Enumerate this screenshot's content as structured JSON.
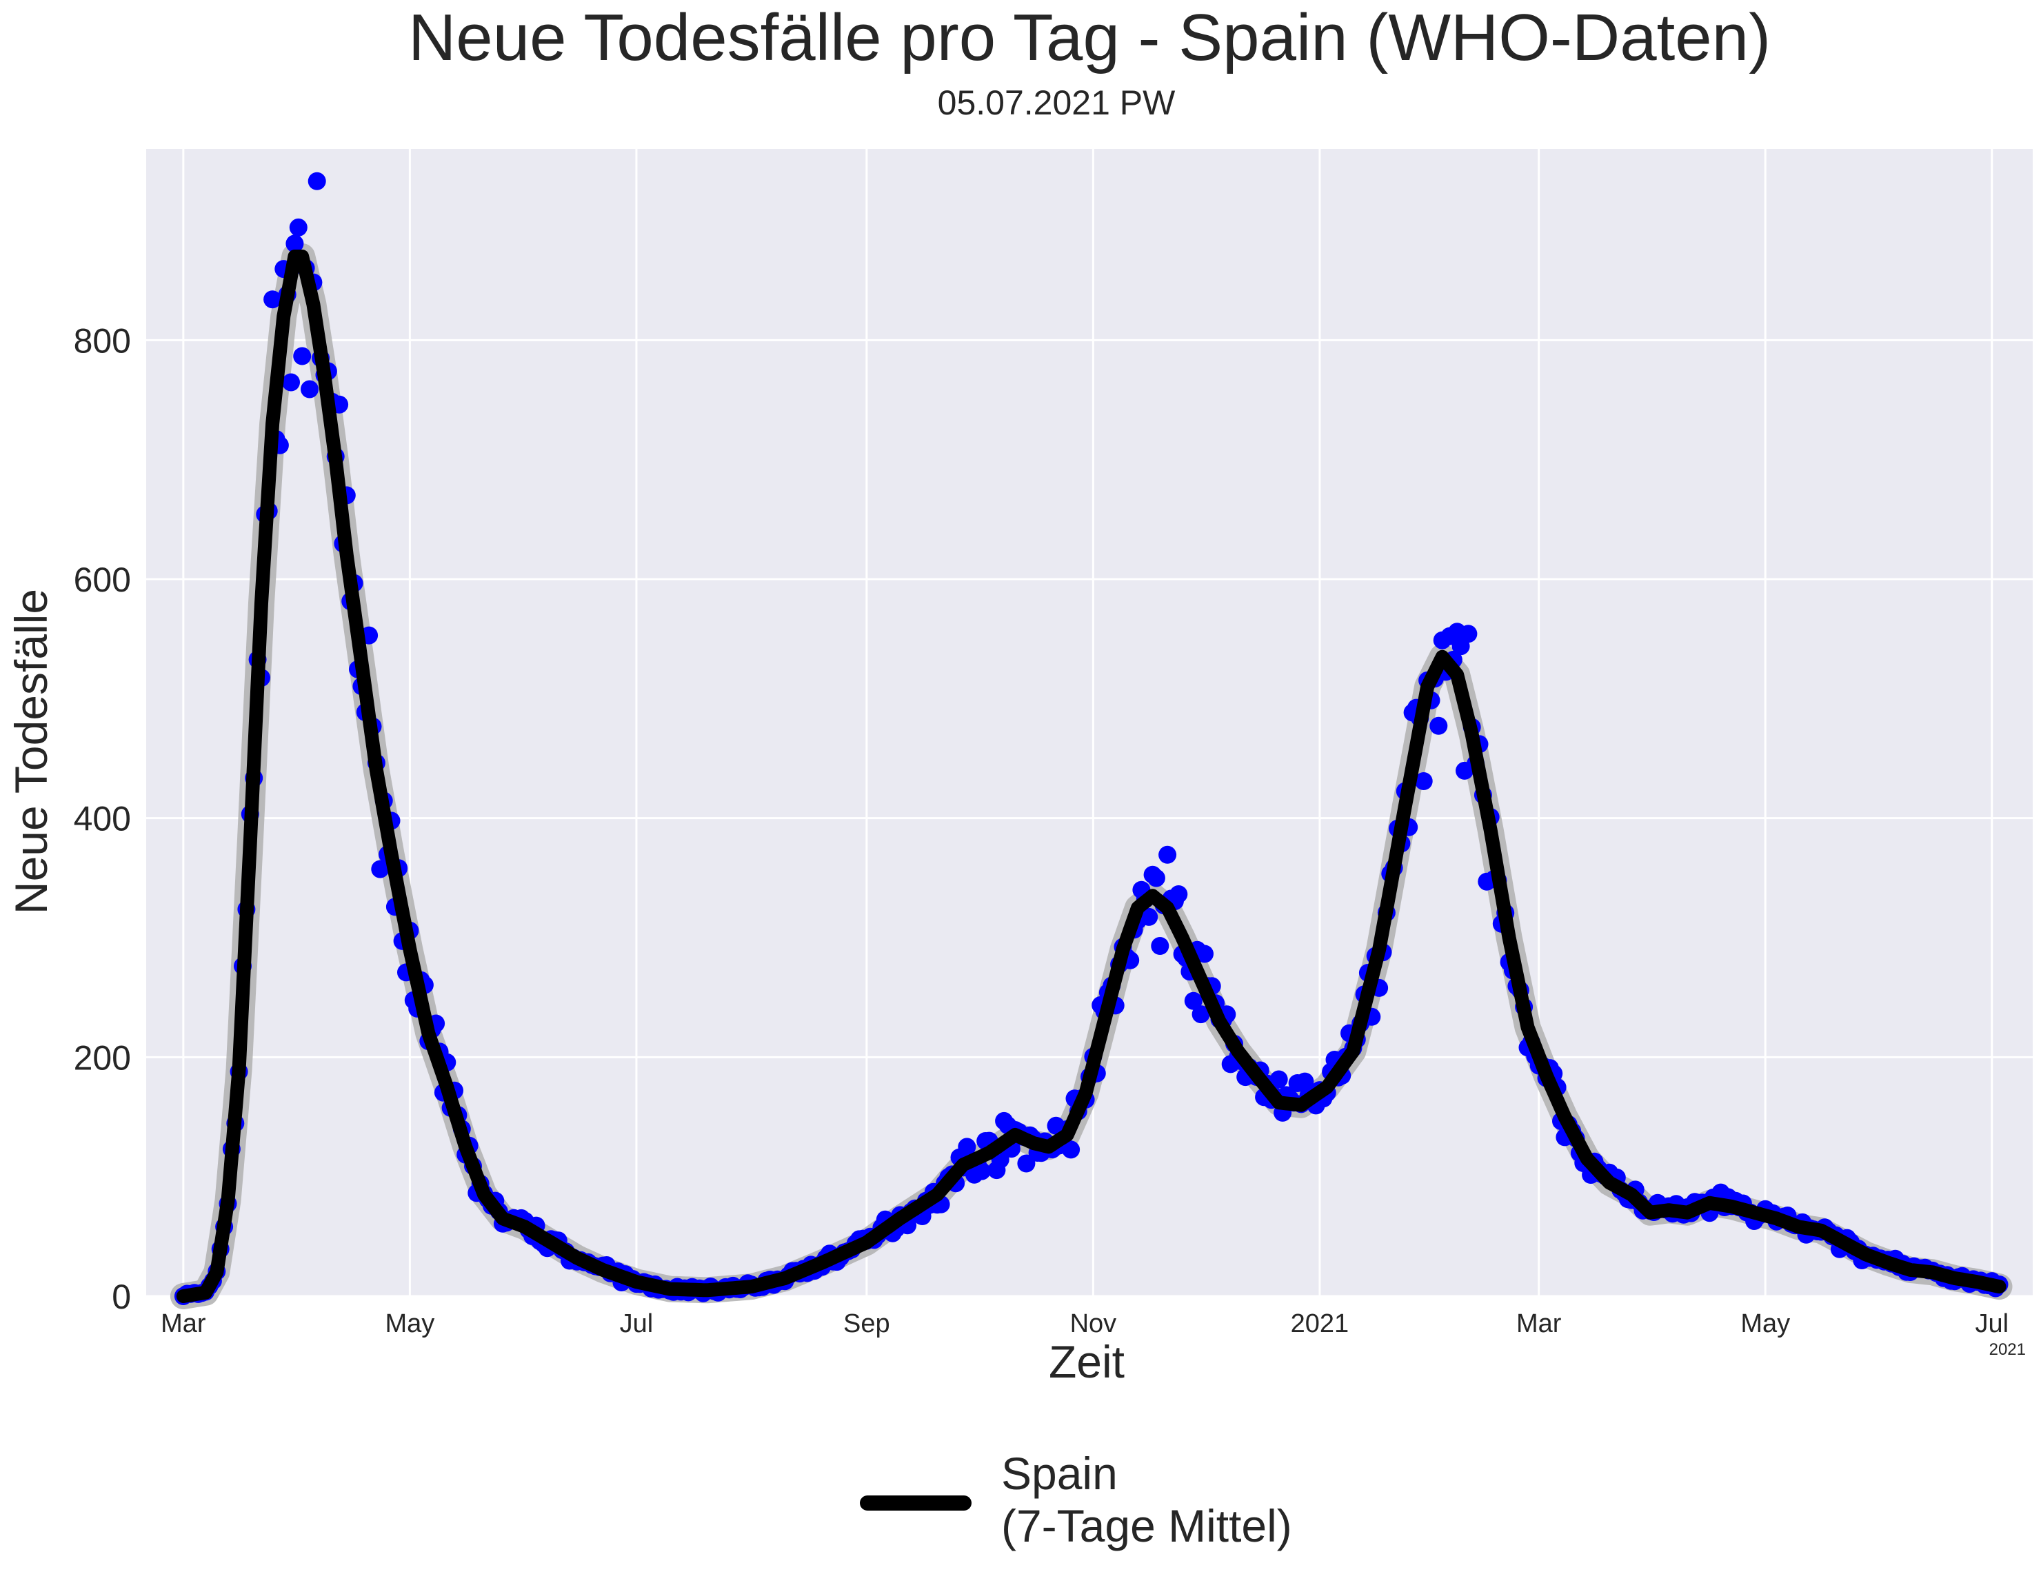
{
  "chart_data": {
    "type": "scatter",
    "title": "Neue Todesfälle pro Tag - Spain (WHO-Daten)",
    "subtitle": "05.07.2021 PW",
    "xlabel": "Zeit",
    "ylabel": "Neue Todesfälle",
    "x_offset_label": "2021",
    "x_range": [
      "2020-02-20",
      "2021-07-12"
    ],
    "ylim": [
      0,
      960
    ],
    "grid": true,
    "legend_position": "bottom-center",
    "x_ticks": [
      {
        "date": "2020-03-01",
        "label": "Mar"
      },
      {
        "date": "2020-05-01",
        "label": "May"
      },
      {
        "date": "2020-07-01",
        "label": "Jul"
      },
      {
        "date": "2020-09-01",
        "label": "Sep"
      },
      {
        "date": "2020-11-01",
        "label": "Nov"
      },
      {
        "date": "2021-01-01",
        "label": "2021"
      },
      {
        "date": "2021-03-01",
        "label": "Mar"
      },
      {
        "date": "2021-05-01",
        "label": "May"
      },
      {
        "date": "2021-07-01",
        "label": "Jul"
      }
    ],
    "y_ticks": [
      0,
      200,
      400,
      600,
      800
    ],
    "colors": {
      "background": "#eaeaf2",
      "grid": "#ffffff",
      "points": "#0000ff",
      "mean_line": "#000000",
      "band": "#b0b0b0"
    },
    "series": [
      {
        "name": "Spain\n(7-Tage Mittel)",
        "type": "line",
        "points": [
          [
            "2020-03-01",
            0
          ],
          [
            "2020-03-07",
            3
          ],
          [
            "2020-03-10",
            20
          ],
          [
            "2020-03-13",
            80
          ],
          [
            "2020-03-16",
            190
          ],
          [
            "2020-03-19",
            380
          ],
          [
            "2020-03-22",
            580
          ],
          [
            "2020-03-25",
            730
          ],
          [
            "2020-03-28",
            820
          ],
          [
            "2020-03-31",
            870
          ],
          [
            "2020-04-02",
            870
          ],
          [
            "2020-04-05",
            830
          ],
          [
            "2020-04-08",
            770
          ],
          [
            "2020-04-11",
            700
          ],
          [
            "2020-04-14",
            620
          ],
          [
            "2020-04-18",
            530
          ],
          [
            "2020-04-22",
            440
          ],
          [
            "2020-04-26",
            370
          ],
          [
            "2020-05-01",
            290
          ],
          [
            "2020-05-06",
            220
          ],
          [
            "2020-05-11",
            175
          ],
          [
            "2020-05-16",
            125
          ],
          [
            "2020-05-21",
            85
          ],
          [
            "2020-05-26",
            65
          ],
          [
            "2020-06-01",
            58
          ],
          [
            "2020-06-08",
            45
          ],
          [
            "2020-06-15",
            32
          ],
          [
            "2020-06-22",
            22
          ],
          [
            "2020-07-01",
            12
          ],
          [
            "2020-07-10",
            6
          ],
          [
            "2020-07-20",
            5
          ],
          [
            "2020-08-01",
            8
          ],
          [
            "2020-08-10",
            15
          ],
          [
            "2020-08-20",
            28
          ],
          [
            "2020-09-01",
            45
          ],
          [
            "2020-09-10",
            65
          ],
          [
            "2020-09-20",
            85
          ],
          [
            "2020-09-27",
            110
          ],
          [
            "2020-10-04",
            120
          ],
          [
            "2020-10-11",
            135
          ],
          [
            "2020-10-16",
            128
          ],
          [
            "2020-10-20",
            125
          ],
          [
            "2020-10-25",
            135
          ],
          [
            "2020-10-30",
            170
          ],
          [
            "2020-11-04",
            230
          ],
          [
            "2020-11-09",
            290
          ],
          [
            "2020-11-13",
            325
          ],
          [
            "2020-11-17",
            335
          ],
          [
            "2020-11-21",
            325
          ],
          [
            "2020-11-25",
            300
          ],
          [
            "2020-11-30",
            265
          ],
          [
            "2020-12-05",
            230
          ],
          [
            "2020-12-10",
            205
          ],
          [
            "2020-12-15",
            185
          ],
          [
            "2020-12-21",
            162
          ],
          [
            "2020-12-27",
            160
          ],
          [
            "2021-01-03",
            175
          ],
          [
            "2021-01-10",
            205
          ],
          [
            "2021-01-17",
            290
          ],
          [
            "2021-01-24",
            410
          ],
          [
            "2021-01-30",
            510
          ],
          [
            "2021-02-03",
            535
          ],
          [
            "2021-02-07",
            520
          ],
          [
            "2021-02-11",
            470
          ],
          [
            "2021-02-16",
            390
          ],
          [
            "2021-02-21",
            300
          ],
          [
            "2021-02-26",
            225
          ],
          [
            "2021-03-03",
            185
          ],
          [
            "2021-03-08",
            150
          ],
          [
            "2021-03-14",
            115
          ],
          [
            "2021-03-20",
            95
          ],
          [
            "2021-03-26",
            85
          ],
          [
            "2021-03-31",
            70
          ],
          [
            "2021-04-05",
            72
          ],
          [
            "2021-04-10",
            70
          ],
          [
            "2021-04-16",
            78
          ],
          [
            "2021-04-22",
            75
          ],
          [
            "2021-04-28",
            70
          ],
          [
            "2021-05-04",
            65
          ],
          [
            "2021-05-10",
            58
          ],
          [
            "2021-05-16",
            55
          ],
          [
            "2021-05-22",
            45
          ],
          [
            "2021-05-28",
            35
          ],
          [
            "2021-06-03",
            28
          ],
          [
            "2021-06-09",
            22
          ],
          [
            "2021-06-15",
            20
          ],
          [
            "2021-06-21",
            15
          ],
          [
            "2021-06-27",
            12
          ],
          [
            "2021-07-03",
            8
          ]
        ]
      }
    ]
  }
}
